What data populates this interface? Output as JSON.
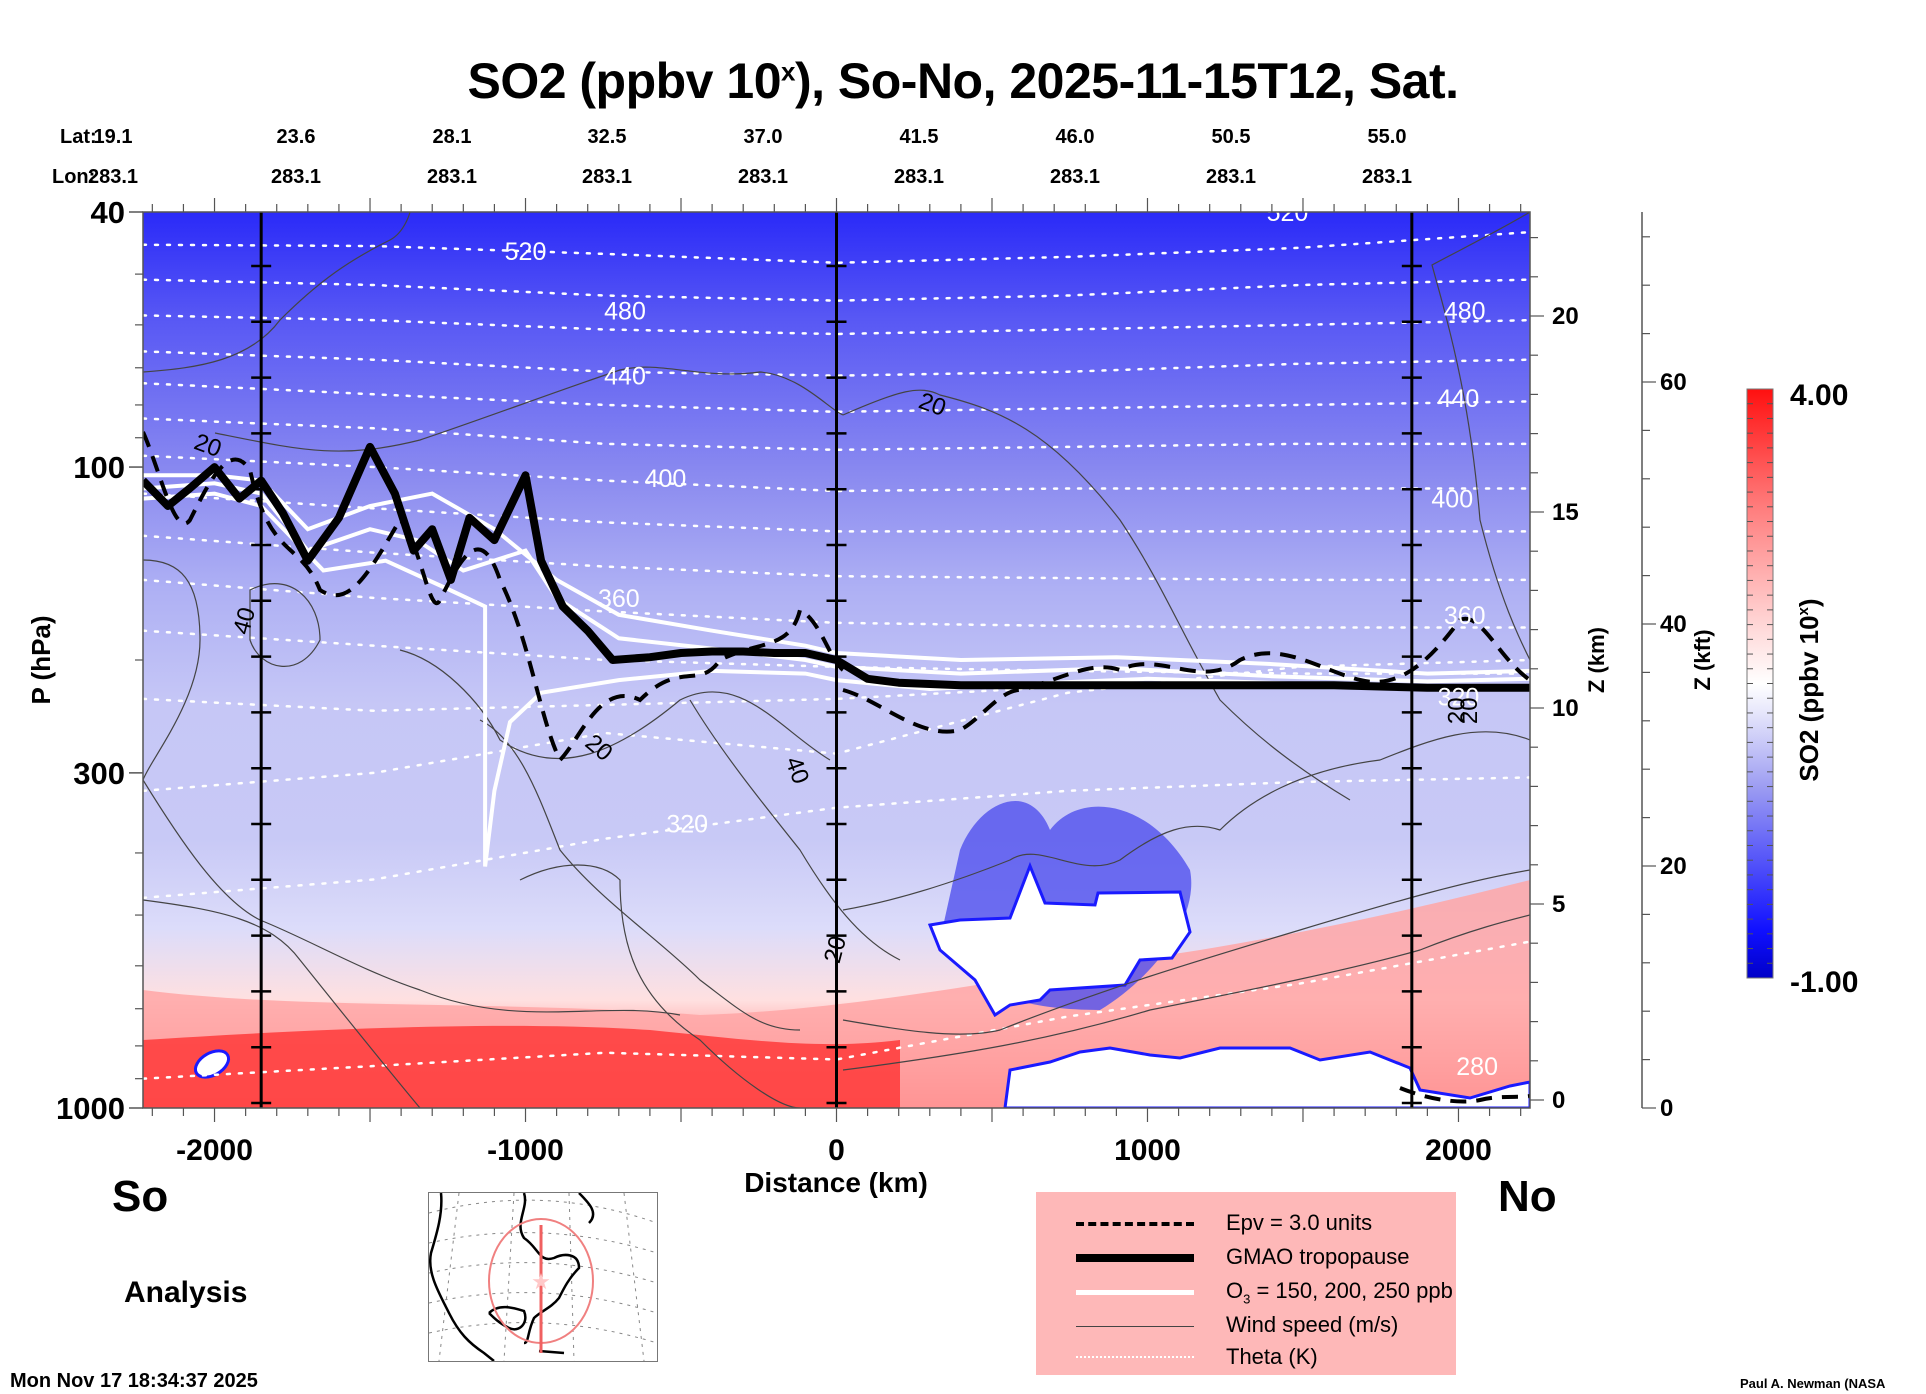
{
  "header": {
    "title_prefix": "SO2 (ppbv 10",
    "title_sup": "x",
    "title_suffix": "), So-No, 2025-11-15T12, Sat."
  },
  "latlon": {
    "lat_label": "Lat:",
    "lon_label": "Lon:",
    "lat_values": [
      "19.1",
      "23.6",
      "28.1",
      "32.5",
      "37.0",
      "41.5",
      "46.0",
      "50.5",
      "55.0"
    ],
    "lon_values": [
      "283.1",
      "283.1",
      "283.1",
      "283.1",
      "283.1",
      "283.1",
      "283.1",
      "283.1",
      "283.1"
    ]
  },
  "labels": {
    "south": "So",
    "north": "No",
    "analysis": "Analysis",
    "timestamp": "Mon Nov 17 18:34:37 2025",
    "credit": "Paul A. Newman (NASA"
  },
  "legend": {
    "items": [
      {
        "label": "Epv = 3.0 units",
        "style": "dashed-black"
      },
      {
        "label": "GMAO tropopause",
        "style": "thick-black"
      },
      {
        "label_prefix": "O",
        "label_sub": "3",
        "label_suffix": " = 150, 200, 250 ppb",
        "style": "white"
      },
      {
        "label": "Wind speed (m/s)",
        "style": "thin-gray"
      },
      {
        "label": "Theta (K)",
        "style": "dotted-white"
      }
    ]
  },
  "colorbar": {
    "title_prefix": "SO2 (ppbv 10",
    "title_sup": "x",
    "title_suffix": ")",
    "max_label": "4.00",
    "min_label": "-1.00",
    "vmin": -1.0,
    "vmax": 4.0,
    "color_low": "#0000d8",
    "color_mid": "#ffffff",
    "color_high": "#ff1010"
  },
  "chart_data": {
    "type": "heatmap",
    "title": "SO2 (ppbv 10^x), So-No, 2025-11-15T12, Sat.",
    "xlabel": "Distance (km)",
    "ylabel": "P (hPa)",
    "y2label": "Z (km)",
    "y3label": "Z (kft)",
    "xlim": [
      -2230,
      2230
    ],
    "ylim": [
      1000,
      40
    ],
    "yscale": "log",
    "x_ticks": [
      -2000,
      -1000,
      0,
      1000,
      2000
    ],
    "x_tick_labels": [
      "-2000",
      "-1000",
      "0",
      "1000",
      "2000"
    ],
    "y_ticks": [
      40,
      100,
      300,
      1000
    ],
    "y_tick_labels": [
      "40",
      "100",
      "300",
      "1000"
    ],
    "z_km_ticks": [
      0,
      5,
      10,
      15,
      20
    ],
    "z_km_tick_labels": [
      "0",
      "5",
      "10",
      "15",
      "20"
    ],
    "z_kft_ticks": [
      0,
      20,
      40,
      60
    ],
    "z_kft_tick_labels": [
      "0",
      "20",
      "40",
      "60"
    ],
    "vertical_marker_lines_km": [
      -1850,
      0,
      1850
    ],
    "theta_contours": [
      {
        "theta": 520,
        "pressure_hPa": 45
      },
      {
        "theta": 480,
        "pressure_hPa": 58
      },
      {
        "theta": 440,
        "pressure_hPa": 74
      },
      {
        "theta": 400,
        "pressure_hPa": 100
      },
      {
        "theta": 360,
        "pressure_hPa": 150
      },
      {
        "theta": 320,
        "pressure_hPa": 270
      },
      {
        "theta": 280,
        "pressure_hPa": 870
      }
    ],
    "theta_labels": [
      {
        "text": "520",
        "x": -1000,
        "p": 46
      },
      {
        "text": "480",
        "x": -680,
        "p": 57
      },
      {
        "text": "440",
        "x": -680,
        "p": 72
      },
      {
        "text": "400",
        "x": -550,
        "p": 104
      },
      {
        "text": "360",
        "x": -700,
        "p": 160
      },
      {
        "text": "320",
        "x": -480,
        "p": 360
      },
      {
        "text": "520",
        "x": 1450,
        "p": 40
      },
      {
        "text": "480",
        "x": 2020,
        "p": 57
      },
      {
        "text": "440",
        "x": 2000,
        "p": 78
      },
      {
        "text": "400",
        "x": 1980,
        "p": 112
      },
      {
        "text": "360",
        "x": 2020,
        "p": 170
      },
      {
        "text": "320",
        "x": 2000,
        "p": 228
      },
      {
        "text": "280",
        "x": 2060,
        "p": 860
      }
    ],
    "wind_labels": [
      {
        "text": "20",
        "x": -2030,
        "p": 95
      },
      {
        "text": "40",
        "x": -1880,
        "p": 175
      },
      {
        "text": "20",
        "x": 300,
        "p": 82
      },
      {
        "text": "20",
        "x": -780,
        "p": 280
      },
      {
        "text": "40",
        "x": -150,
        "p": 300
      },
      {
        "text": "20",
        "x": 20,
        "p": 570
      },
      {
        "text": "20",
        "x": 2020,
        "p": 240
      },
      {
        "text": "20",
        "x": 2060,
        "p": 240
      }
    ],
    "tropopause_hPa": [
      [
        -2230,
        105
      ],
      [
        -2150,
        115
      ],
      [
        -2080,
        108
      ],
      [
        -2000,
        100
      ],
      [
        -1920,
        112
      ],
      [
        -1850,
        105
      ],
      [
        -1780,
        118
      ],
      [
        -1700,
        140
      ],
      [
        -1600,
        120
      ],
      [
        -1500,
        93
      ],
      [
        -1420,
        110
      ],
      [
        -1360,
        135
      ],
      [
        -1300,
        125
      ],
      [
        -1240,
        150
      ],
      [
        -1180,
        120
      ],
      [
        -1100,
        130
      ],
      [
        -1000,
        103
      ],
      [
        -950,
        140
      ],
      [
        -880,
        165
      ],
      [
        -800,
        180
      ],
      [
        -720,
        200
      ],
      [
        -600,
        198
      ],
      [
        -500,
        195
      ],
      [
        -400,
        194
      ],
      [
        -300,
        194
      ],
      [
        -200,
        195
      ],
      [
        -100,
        195
      ],
      [
        0,
        200
      ],
      [
        100,
        214
      ],
      [
        200,
        217
      ],
      [
        400,
        219
      ],
      [
        800,
        219
      ],
      [
        1200,
        219
      ],
      [
        1600,
        219
      ],
      [
        1900,
        221
      ],
      [
        2230,
        221
      ]
    ],
    "o3_contours_hPa": [
      {
        "level_ppb": 150,
        "points": [
          [
            -2230,
            103
          ],
          [
            -2000,
            103
          ],
          [
            -1850,
            105
          ],
          [
            -1700,
            125
          ],
          [
            -1500,
            115
          ],
          [
            -1300,
            110
          ],
          [
            -1100,
            125
          ],
          [
            -900,
            150
          ],
          [
            -700,
            170
          ],
          [
            -400,
            180
          ],
          [
            -100,
            190
          ],
          [
            0,
            195
          ],
          [
            400,
            200
          ],
          [
            900,
            198
          ],
          [
            1400,
            203
          ],
          [
            1900,
            210
          ],
          [
            2230,
            208
          ]
        ]
      },
      {
        "level_ppb": 200,
        "points": [
          [
            -2230,
            108
          ],
          [
            -2000,
            106
          ],
          [
            -1850,
            110
          ],
          [
            -1700,
            135
          ],
          [
            -1500,
            125
          ],
          [
            -1350,
            130
          ],
          [
            -1200,
            145
          ],
          [
            -1000,
            135
          ],
          [
            -900,
            160
          ],
          [
            -700,
            185
          ],
          [
            -400,
            192
          ],
          [
            -100,
            200
          ],
          [
            0,
            205
          ],
          [
            400,
            210
          ],
          [
            900,
            206
          ],
          [
            1400,
            212
          ],
          [
            1900,
            216
          ],
          [
            2230,
            214
          ]
        ]
      },
      {
        "level_ppb": 250,
        "points": [
          [
            -2230,
            112
          ],
          [
            -2000,
            110
          ],
          [
            -1850,
            115
          ],
          [
            -1650,
            145
          ],
          [
            -1450,
            140
          ],
          [
            -1250,
            155
          ],
          [
            -1130,
            165
          ],
          [
            -1130,
            420
          ],
          [
            -1100,
            320
          ],
          [
            -1050,
            250
          ],
          [
            -950,
            225
          ],
          [
            -700,
            215
          ],
          [
            -400,
            208
          ],
          [
            -100,
            210
          ],
          [
            0,
            215
          ],
          [
            300,
            222
          ],
          [
            600,
            218
          ],
          [
            1000,
            214
          ],
          [
            1500,
            218
          ],
          [
            1900,
            222
          ],
          [
            2230,
            222
          ]
        ]
      }
    ],
    "colorbar_range": [
      -1.0,
      4.0
    ],
    "notes": "Field: SO2 log10 ppbv; blue aloft (≈-1 to 0), reddish near surface (≈1.5 to 4), white (missing/below-range) region near 700 hPa at 300–1100 km and near surface 700–1600 km."
  }
}
